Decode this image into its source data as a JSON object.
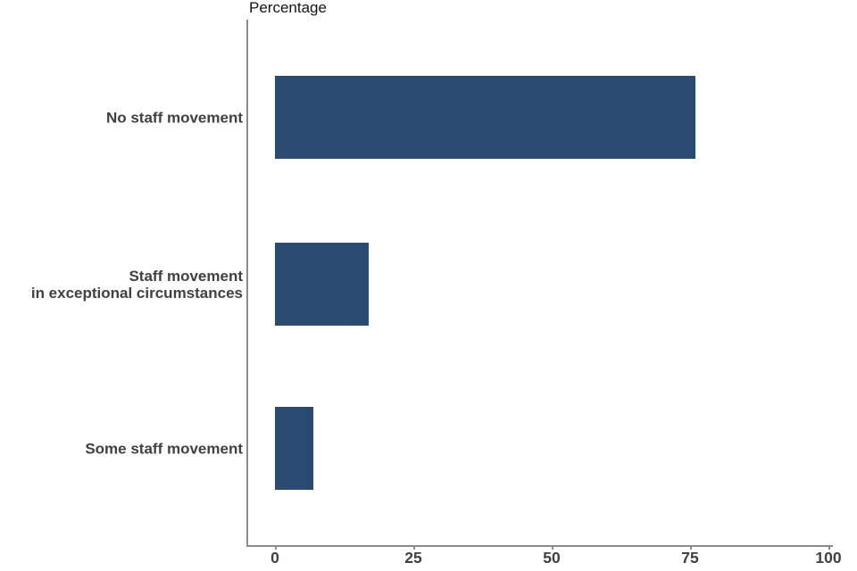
{
  "chart_data": {
    "type": "bar",
    "orientation": "horizontal",
    "title": "Percentage",
    "categories": [
      "No staff movement",
      "Staff movement\nin exceptional circumstances",
      "Some staff movement"
    ],
    "values": [
      76,
      17,
      7
    ],
    "xlabel": "Percentage",
    "ylabel": "",
    "xlim": [
      0,
      100
    ],
    "x_ticks": [
      "0",
      "25",
      "50",
      "75",
      "100"
    ],
    "grid": false,
    "legend": "none",
    "colors": {
      "bar": "#2a4a72",
      "axis": "#8c8c8c",
      "tick_label": "#404040",
      "category_label": "#404040",
      "title": "#141414",
      "background": "#ffffff"
    }
  }
}
